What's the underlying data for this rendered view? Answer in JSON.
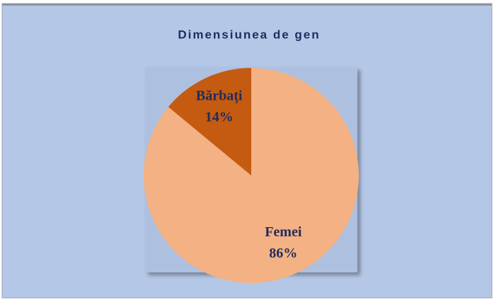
{
  "chart_data": {
    "type": "pie",
    "title": "Dimensiunea de gen",
    "categories": [
      "Femei",
      "Bărbați"
    ],
    "values": [
      86,
      14
    ],
    "value_labels": [
      "86%",
      "14%"
    ],
    "colors": [
      "#f4b183",
      "#c55a11"
    ]
  }
}
